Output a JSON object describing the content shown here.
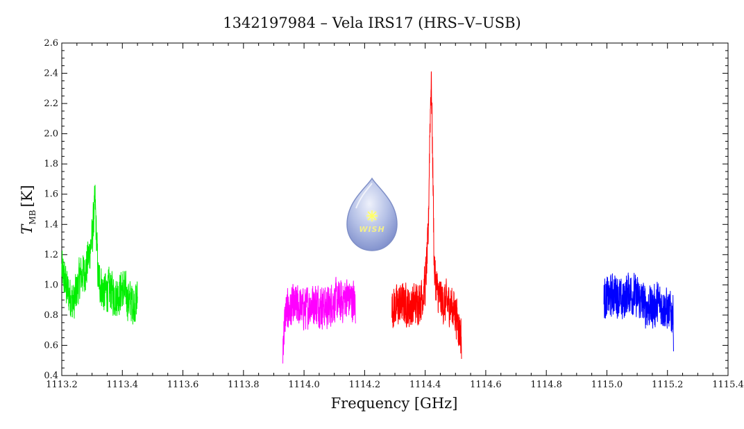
{
  "chart_data": {
    "type": "line",
    "title": "1342197984 – Vela IRS17 (HRS–V–USB)",
    "xlabel": "Frequency [GHz]",
    "ylabel_symbol": "T",
    "ylabel_subscript": "MB",
    "ylabel_unit": "[K]",
    "xlim": [
      1113.2,
      1115.4
    ],
    "ylim": [
      0.4,
      2.6
    ],
    "xticks": [
      "1113.2",
      "1113.4",
      "1113.6",
      "1113.8",
      "1114.0",
      "1114.2",
      "1114.4",
      "1114.6",
      "1114.8",
      "1115.0",
      "1115.2",
      "1115.4"
    ],
    "yticks": [
      "0.4",
      "0.6",
      "0.8",
      "1.0",
      "1.2",
      "1.4",
      "1.6",
      "1.8",
      "2.0",
      "2.2",
      "2.4",
      "2.6"
    ],
    "grid": false,
    "legend": "none",
    "series": [
      {
        "color": "#00ee00",
        "x": [
          1113.2,
          1113.22,
          1113.24,
          1113.26,
          1113.28,
          1113.3,
          1113.31,
          1113.32,
          1113.34,
          1113.36,
          1113.38,
          1113.4,
          1113.42,
          1113.44,
          1113.45
        ],
        "y": [
          1.1,
          0.95,
          0.88,
          1.05,
          1.1,
          1.3,
          1.55,
          1.05,
          0.95,
          0.97,
          0.92,
          0.98,
          0.9,
          0.88,
          0.9
        ]
      },
      {
        "color": "#ff00ff",
        "x": [
          1113.93,
          1113.94,
          1113.96,
          1113.98,
          1114.0,
          1114.02,
          1114.04,
          1114.06,
          1114.08,
          1114.1,
          1114.12,
          1114.14,
          1114.16,
          1114.17
        ],
        "y": [
          0.62,
          0.82,
          0.85,
          0.86,
          0.84,
          0.87,
          0.88,
          0.86,
          0.85,
          0.9,
          0.88,
          0.92,
          0.9,
          0.88
        ],
        "min_y": 0.48,
        "max_y": 1.13
      },
      {
        "color": "#ff0000",
        "x": [
          1114.29,
          1114.31,
          1114.33,
          1114.35,
          1114.37,
          1114.39,
          1114.4,
          1114.41,
          1114.415,
          1114.42,
          1114.425,
          1114.43,
          1114.44,
          1114.46,
          1114.48,
          1114.5,
          1114.52
        ],
        "y": [
          0.85,
          0.86,
          0.88,
          0.85,
          0.88,
          0.92,
          1.0,
          1.3,
          2.0,
          2.4,
          1.8,
          1.1,
          0.95,
          0.88,
          0.88,
          0.82,
          0.65
        ],
        "min_y": 0.51,
        "max_y": 2.41
      },
      {
        "color": "#0000ff",
        "x": [
          1114.99,
          1115.01,
          1115.03,
          1115.05,
          1115.07,
          1115.09,
          1115.11,
          1115.13,
          1115.15,
          1115.17,
          1115.19,
          1115.21,
          1115.22
        ],
        "y": [
          0.9,
          0.92,
          0.95,
          0.88,
          0.96,
          0.93,
          0.9,
          0.86,
          0.85,
          0.88,
          0.85,
          0.82,
          0.8
        ],
        "min_y": 0.56,
        "max_y": 1.21
      }
    ]
  },
  "logo": {
    "text": "WISH",
    "colors": {
      "drop_top": "#dde3f4",
      "drop_bottom": "#7f92cf",
      "star": "#ffff66"
    }
  }
}
